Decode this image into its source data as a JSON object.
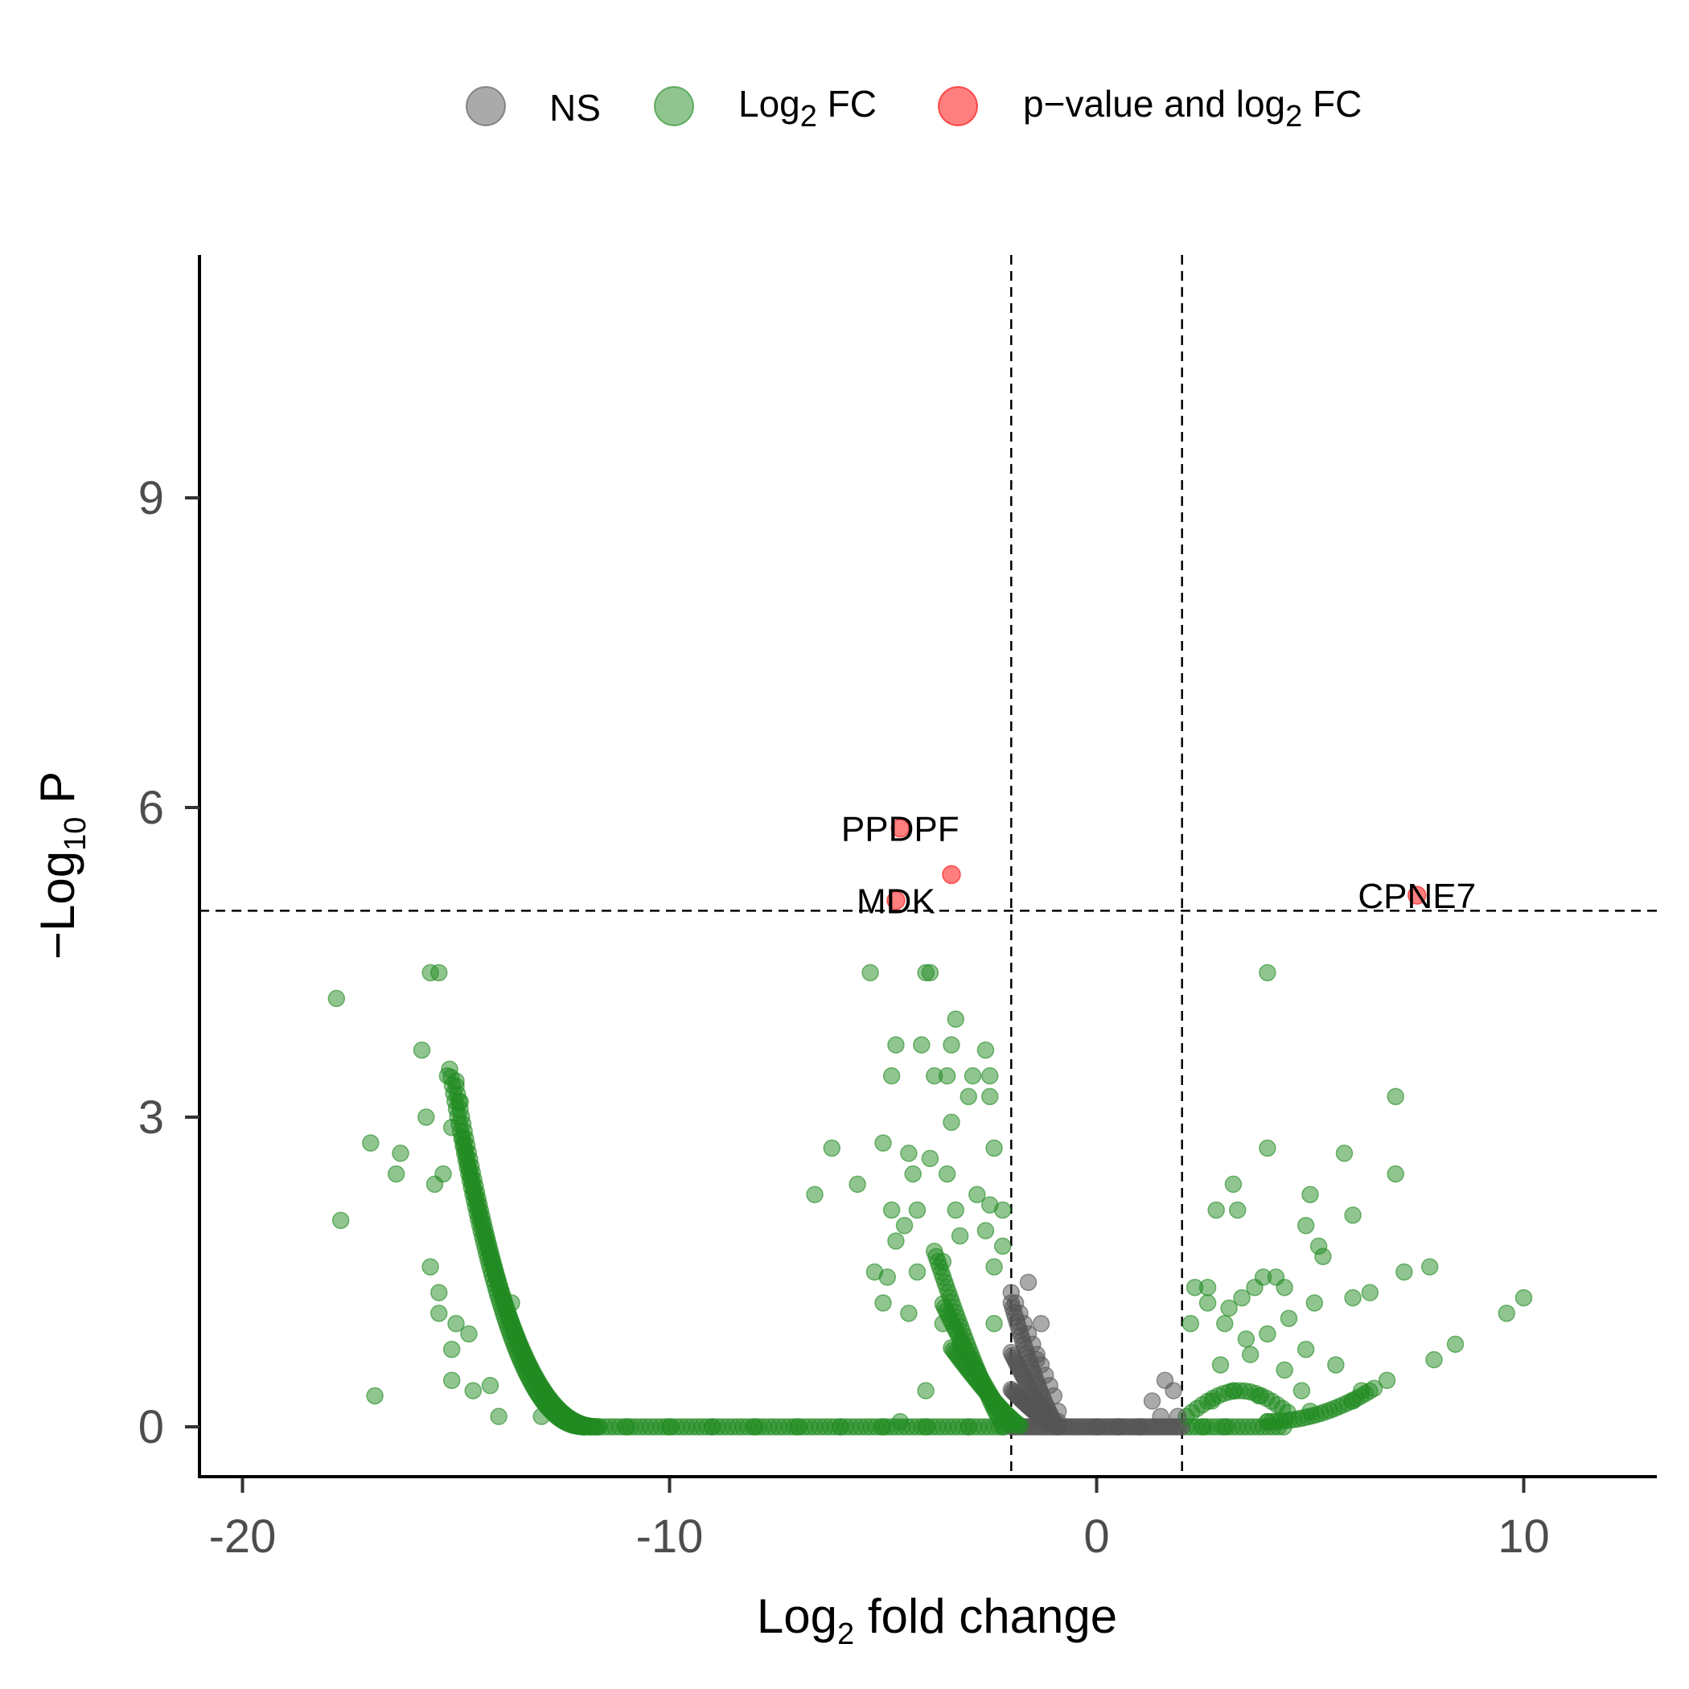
{
  "legend": {
    "ns": {
      "label": "NS",
      "color": "#555555"
    },
    "fc": {
      "label": "Log",
      "sub": "2",
      "suffix": " FC",
      "color": "#228b22"
    },
    "both": {
      "label": "p−value and log",
      "sub": "2",
      "suffix": " FC",
      "color": "#ff0000"
    }
  },
  "axes": {
    "x_title": {
      "main": "Log",
      "sub": "2",
      "suffix": " fold change"
    },
    "y_title": {
      "main": "−Log",
      "sub": "10",
      "suffix": " P"
    },
    "x_ticks": [
      "-20",
      "-10",
      "0",
      "10"
    ],
    "y_ticks": [
      "0",
      "3",
      "6",
      "9"
    ]
  },
  "chart_data": {
    "type": "scatter",
    "xlabel": "Log2 fold change",
    "ylabel": "-Log10 P",
    "xlim": [
      -21,
      13.2
    ],
    "ylim": [
      -0.5,
      11.3
    ],
    "x_ticks": [
      -20,
      -10,
      0,
      10
    ],
    "y_ticks": [
      0,
      3,
      6,
      9
    ],
    "cutoffs": {
      "fc": [
        -2,
        2
      ],
      "p": 5
    },
    "grid": false,
    "legend_position": "top",
    "series": [
      {
        "name": "NS",
        "color": "#555555",
        "points": [
          [
            -2.0,
            1.3
          ],
          [
            -1.9,
            1.2
          ],
          [
            -1.8,
            1.1
          ],
          [
            -1.7,
            1.0
          ],
          [
            -1.6,
            0.9
          ],
          [
            -1.5,
            0.8
          ],
          [
            -1.4,
            0.7
          ],
          [
            -1.3,
            0.6
          ],
          [
            -1.2,
            0.5
          ],
          [
            -1.1,
            0.4
          ],
          [
            -1.0,
            0.3
          ],
          [
            -0.9,
            0.15
          ],
          [
            -1.6,
            1.4
          ],
          [
            -1.3,
            1.0
          ],
          [
            -1.4,
            0.65
          ],
          [
            -0.9,
            0.05
          ],
          [
            0.0,
            0.0
          ],
          [
            0.5,
            0.0
          ],
          [
            1.0,
            0.0
          ],
          [
            1.3,
            0.25
          ],
          [
            1.6,
            0.45
          ],
          [
            1.8,
            0.35
          ],
          [
            1.9,
            0.1
          ],
          [
            1.5,
            0.1
          ]
        ]
      },
      {
        "name": "Log2 FC",
        "color": "#228b22",
        "points": [
          [
            -17.8,
            4.15
          ],
          [
            -15.6,
            4.4
          ],
          [
            -15.4,
            4.4
          ],
          [
            -17.7,
            2.0
          ],
          [
            -16.9,
            0.3
          ],
          [
            -17.0,
            2.75
          ],
          [
            -16.4,
            2.45
          ],
          [
            -16.3,
            2.65
          ],
          [
            -15.8,
            3.65
          ],
          [
            -15.7,
            3.0
          ],
          [
            -15.5,
            2.35
          ],
          [
            -15.2,
            3.4
          ],
          [
            -15.0,
            3.35
          ],
          [
            -14.9,
            3.15
          ],
          [
            -15.3,
            2.45
          ],
          [
            -15.1,
            2.9
          ],
          [
            -15.6,
            1.55
          ],
          [
            -15.4,
            1.3
          ],
          [
            -15.4,
            1.1
          ],
          [
            -15.0,
            1.0
          ],
          [
            -15.1,
            0.75
          ],
          [
            -15.1,
            0.45
          ],
          [
            -14.7,
            0.9
          ],
          [
            -14.6,
            0.35
          ],
          [
            -13.7,
            1.2
          ],
          [
            -14.2,
            0.4
          ],
          [
            -14.0,
            0.1
          ],
          [
            -13.0,
            0.1
          ],
          [
            -12.0,
            0.0
          ],
          [
            -11.0,
            0.0
          ],
          [
            -10.0,
            0.0
          ],
          [
            -9.0,
            0.0
          ],
          [
            -8.0,
            0.0
          ],
          [
            -7.0,
            0.0
          ],
          [
            -6.0,
            0.0
          ],
          [
            -5.0,
            0.0
          ],
          [
            -4.0,
            0.0
          ],
          [
            -3.0,
            0.0
          ],
          [
            -2.2,
            0.0
          ],
          [
            -5.3,
            4.4
          ],
          [
            -4.0,
            4.4
          ],
          [
            -3.9,
            4.4
          ],
          [
            -4.7,
            3.7
          ],
          [
            -4.1,
            3.7
          ],
          [
            -3.4,
            3.7
          ],
          [
            -3.3,
            3.95
          ],
          [
            -2.6,
            3.65
          ],
          [
            -4.8,
            3.4
          ],
          [
            -3.8,
            3.4
          ],
          [
            -3.5,
            3.4
          ],
          [
            -2.9,
            3.4
          ],
          [
            -2.5,
            3.4
          ],
          [
            -3.0,
            3.2
          ],
          [
            -2.5,
            3.2
          ],
          [
            -3.4,
            2.95
          ],
          [
            -6.2,
            2.7
          ],
          [
            -5.0,
            2.75
          ],
          [
            -4.4,
            2.65
          ],
          [
            -3.9,
            2.6
          ],
          [
            -2.4,
            2.7
          ],
          [
            -6.6,
            2.25
          ],
          [
            -5.6,
            2.35
          ],
          [
            -4.3,
            2.45
          ],
          [
            -3.5,
            2.45
          ],
          [
            -2.8,
            2.25
          ],
          [
            -2.5,
            2.15
          ],
          [
            -4.8,
            2.1
          ],
          [
            -4.2,
            2.1
          ],
          [
            -3.3,
            2.1
          ],
          [
            -2.2,
            2.1
          ],
          [
            -4.7,
            1.8
          ],
          [
            -4.5,
            1.95
          ],
          [
            -3.2,
            1.85
          ],
          [
            -2.6,
            1.9
          ],
          [
            -2.2,
            1.75
          ],
          [
            -5.2,
            1.5
          ],
          [
            -4.9,
            1.45
          ],
          [
            -4.2,
            1.5
          ],
          [
            -3.6,
            1.6
          ],
          [
            -2.4,
            1.55
          ],
          [
            -5.0,
            1.2
          ],
          [
            -4.4,
            1.1
          ],
          [
            -3.6,
            1.0
          ],
          [
            -2.4,
            1.0
          ],
          [
            -3.2,
            0.8
          ],
          [
            -2.8,
            0.55
          ],
          [
            -4.0,
            0.35
          ],
          [
            -2.4,
            0.2
          ],
          [
            -4.6,
            0.05
          ],
          [
            4.0,
            4.4
          ],
          [
            7.0,
            3.2
          ],
          [
            4.0,
            2.7
          ],
          [
            5.8,
            2.65
          ],
          [
            6.0,
            2.05
          ],
          [
            7.0,
            2.45
          ],
          [
            3.2,
            2.35
          ],
          [
            3.3,
            2.1
          ],
          [
            2.8,
            2.1
          ],
          [
            5.0,
            2.25
          ],
          [
            4.9,
            1.95
          ],
          [
            5.2,
            1.75
          ],
          [
            5.3,
            1.65
          ],
          [
            7.8,
            1.55
          ],
          [
            7.2,
            1.5
          ],
          [
            10.0,
            1.25
          ],
          [
            9.6,
            1.1
          ],
          [
            6.4,
            1.3
          ],
          [
            6.0,
            1.25
          ],
          [
            5.1,
            1.2
          ],
          [
            4.4,
            1.35
          ],
          [
            3.9,
            1.45
          ],
          [
            4.2,
            1.45
          ],
          [
            3.7,
            1.35
          ],
          [
            3.4,
            1.25
          ],
          [
            3.1,
            1.15
          ],
          [
            2.6,
            1.35
          ],
          [
            2.6,
            1.2
          ],
          [
            2.3,
            1.35
          ],
          [
            2.2,
            1.0
          ],
          [
            3.0,
            1.0
          ],
          [
            3.5,
            0.85
          ],
          [
            4.0,
            0.9
          ],
          [
            4.5,
            1.05
          ],
          [
            4.9,
            0.75
          ],
          [
            8.4,
            0.8
          ],
          [
            7.9,
            0.65
          ],
          [
            5.6,
            0.6
          ],
          [
            6.2,
            0.35
          ],
          [
            6.8,
            0.45
          ],
          [
            2.9,
            0.6
          ],
          [
            3.6,
            0.7
          ],
          [
            4.4,
            0.55
          ],
          [
            4.8,
            0.35
          ],
          [
            3.8,
            0.3
          ],
          [
            3.2,
            0.35
          ],
          [
            2.7,
            0.25
          ],
          [
            3.0,
            0.0
          ],
          [
            4.0,
            0.05
          ],
          [
            5.0,
            0.15
          ],
          [
            6.0,
            0.25
          ],
          [
            2.5,
            0.0
          ]
        ]
      },
      {
        "name": "p-value and log2 FC",
        "color": "#ff0000",
        "points": [
          [
            -4.6,
            5.8
          ],
          [
            -3.4,
            5.35
          ],
          [
            -4.7,
            5.1
          ],
          [
            7.5,
            5.15
          ]
        ]
      }
    ],
    "labels": [
      {
        "text": "PPDPF",
        "x": -4.6,
        "y": 5.8
      },
      {
        "text": "MDK",
        "x": -4.7,
        "y": 5.1
      },
      {
        "text": "CPNE7",
        "x": 7.5,
        "y": 5.15
      }
    ]
  }
}
